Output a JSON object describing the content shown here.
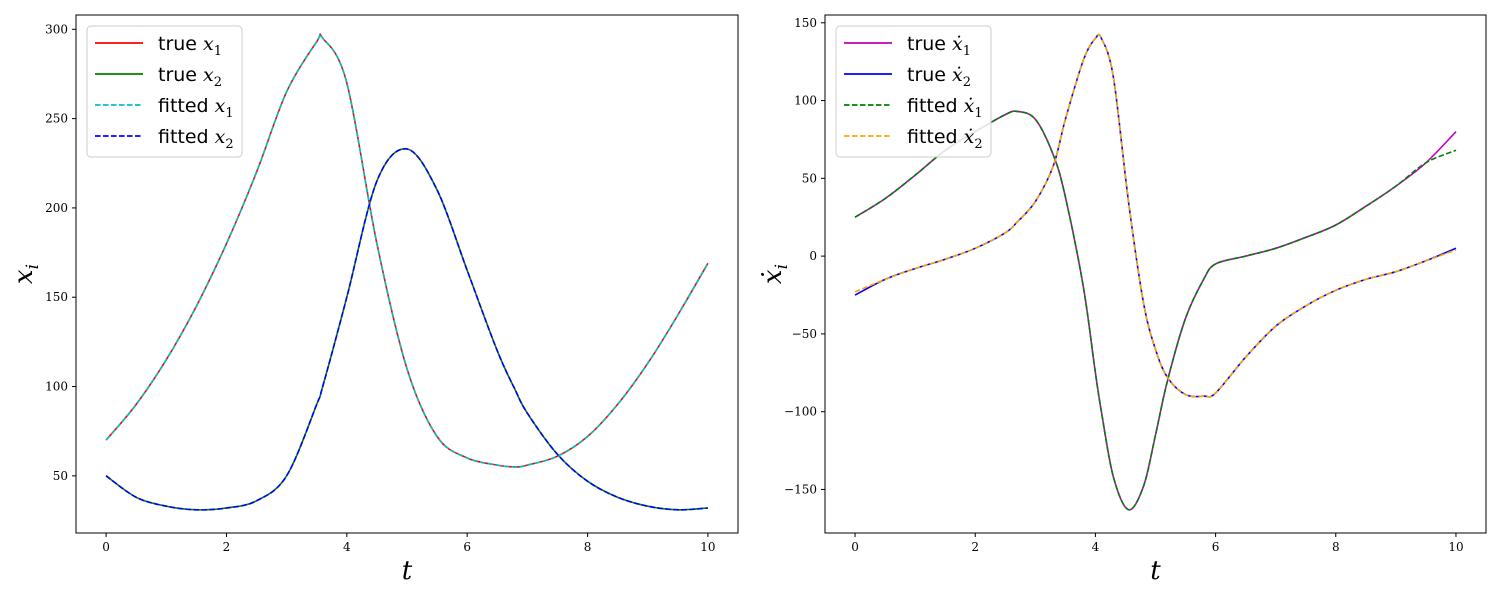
{
  "chart_data": [
    {
      "type": "line",
      "xlabel": "t",
      "ylabel": "x_i",
      "xlim": [
        -0.5,
        10.5
      ],
      "ylim": [
        18,
        308
      ],
      "xticks": [
        0,
        2,
        4,
        6,
        8,
        10
      ],
      "yticks": [
        50,
        100,
        150,
        200,
        250,
        300
      ],
      "grid": false,
      "legend_position": "upper-left",
      "x": [
        0,
        0.5,
        1,
        1.5,
        2,
        2.5,
        3,
        3.5,
        3.6,
        4,
        4.5,
        5,
        5.5,
        6,
        6.5,
        6.8,
        7,
        7.5,
        8,
        8.5,
        9,
        9.5,
        10
      ],
      "series": [
        {
          "name": "true x1",
          "legend_base": "true",
          "legend_sym": "x",
          "legend_sub": "1",
          "legend_dot": false,
          "color": "#ff0000",
          "dash": "solid",
          "y": [
            70,
            90,
            115,
            145,
            180,
            220,
            265,
            293,
            295,
            270,
            180,
            110,
            72,
            60,
            56,
            55,
            56,
            61,
            72,
            90,
            113,
            140,
            169
          ]
        },
        {
          "name": "true x2",
          "legend_base": "true",
          "legend_sym": "x",
          "legend_sub": "2",
          "legend_dot": false,
          "color": "#008000",
          "dash": "solid",
          "y": [
            50,
            38,
            33,
            31,
            32,
            36,
            50,
            90,
            100,
            150,
            215,
            233,
            210,
            165,
            120,
            98,
            85,
            62,
            47,
            38,
            33,
            31,
            32
          ]
        },
        {
          "name": "fitted x1",
          "legend_base": "fitted",
          "legend_sym": "x",
          "legend_sub": "1",
          "legend_dot": false,
          "color": "#00bfbf",
          "dash": "dashed",
          "y": [
            70,
            90,
            115,
            145,
            180,
            220,
            265,
            293,
            295,
            270,
            180,
            110,
            72,
            60,
            56,
            55,
            56,
            61,
            72,
            90,
            113,
            140,
            169
          ]
        },
        {
          "name": "fitted x2",
          "legend_base": "fitted",
          "legend_sym": "x",
          "legend_sub": "2",
          "legend_dot": false,
          "color": "#0000ff",
          "dash": "dashed",
          "y": [
            50,
            38,
            33,
            31,
            32,
            36,
            50,
            90,
            100,
            150,
            215,
            233,
            210,
            165,
            120,
            98,
            85,
            62,
            47,
            38,
            33,
            31,
            32
          ]
        }
      ]
    },
    {
      "type": "line",
      "xlabel": "t",
      "ylabel": "ẋ_i",
      "xlim": [
        -0.5,
        10.5
      ],
      "ylim": [
        -178,
        155
      ],
      "xticks": [
        0,
        2,
        4,
        6,
        8,
        10
      ],
      "yticks": [
        -150,
        -100,
        -50,
        0,
        50,
        100,
        150
      ],
      "grid": false,
      "legend_position": "upper-left",
      "x": [
        0,
        0.5,
        1,
        1.5,
        2,
        2.5,
        2.7,
        3,
        3.3,
        3.5,
        3.8,
        4,
        4.1,
        4.3,
        4.55,
        4.8,
        5,
        5.2,
        5.5,
        5.8,
        6,
        6.5,
        7,
        7.5,
        8,
        8.5,
        9,
        9.5,
        10
      ],
      "series": [
        {
          "name": "true x1",
          "legend_base": "true",
          "legend_sym": "x",
          "legend_sub": "1",
          "legend_dot": true,
          "color": "#bf00bf",
          "dash": "solid",
          "y": [
            25,
            37,
            52,
            68,
            80,
            91,
            93,
            88,
            65,
            38,
            -20,
            -75,
            -100,
            -142,
            -163,
            -148,
            -115,
            -80,
            -40,
            -15,
            -5,
            0,
            5,
            12,
            20,
            32,
            45,
            60,
            80
          ]
        },
        {
          "name": "true x2",
          "legend_base": "true",
          "legend_sym": "x",
          "legend_sub": "2",
          "legend_dot": true,
          "color": "#0000ff",
          "dash": "solid",
          "y": [
            -25,
            -15,
            -8,
            -2,
            5,
            15,
            22,
            35,
            58,
            88,
            126,
            140,
            140,
            115,
            35,
            -30,
            -60,
            -78,
            -89,
            -90,
            -88,
            -65,
            -45,
            -32,
            -22,
            -15,
            -10,
            -3,
            5
          ]
        },
        {
          "name": "fitted x1",
          "legend_base": "fitted",
          "legend_sym": "x",
          "legend_sub": "1",
          "legend_dot": true,
          "color": "#008000",
          "dash": "dashed",
          "y": [
            25,
            37,
            52,
            68,
            80,
            91,
            93,
            88,
            65,
            38,
            -20,
            -75,
            -100,
            -142,
            -163,
            -148,
            -115,
            -80,
            -40,
            -15,
            -5,
            0,
            5,
            12,
            20,
            32,
            45,
            60,
            68
          ]
        },
        {
          "name": "fitted x2",
          "legend_base": "fitted",
          "legend_sym": "x",
          "legend_sub": "2",
          "legend_dot": true,
          "color": "#ffa500",
          "dash": "dashed",
          "y": [
            -23,
            -15,
            -8,
            -2,
            5,
            15,
            22,
            35,
            58,
            88,
            126,
            140,
            140,
            115,
            35,
            -30,
            -60,
            -78,
            -89,
            -90,
            -88,
            -65,
            -45,
            -32,
            -22,
            -15,
            -10,
            -3,
            4
          ]
        }
      ]
    }
  ]
}
